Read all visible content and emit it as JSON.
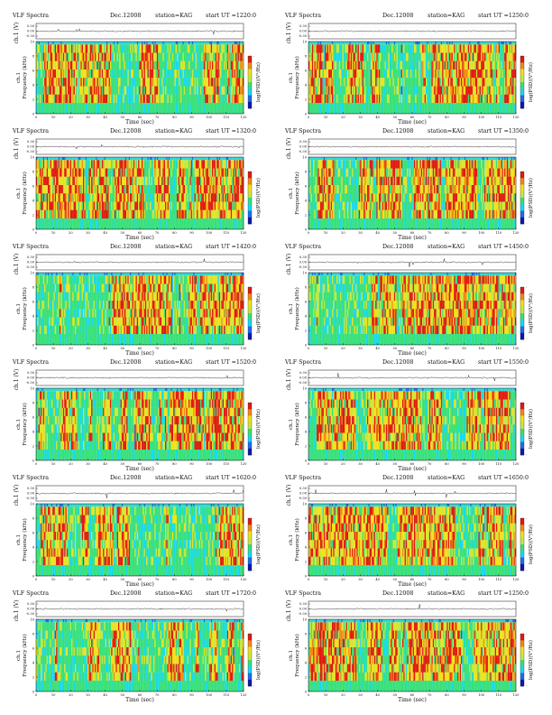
{
  "page": {
    "background": "#ffffff"
  },
  "panel_text": {
    "plot_title": "VLF Spectra",
    "date": "Dec.12008",
    "station": "station=KAG",
    "start_prefix": "start UT =",
    "waveform_ylabel": "ch.1 (V)",
    "freq_ylabel": "Frequency (kHz)",
    "channel_label": "ch.1",
    "xlabel": "Time (sec)",
    "colorbar_label": "log(PSD)(V²/Hz)"
  },
  "colors": {
    "colormap": [
      "#0a1aa8",
      "#1e6cf0",
      "#16d9f2",
      "#38e07a",
      "#c7e838",
      "#f2e11a",
      "#f28a12",
      "#e01a10"
    ],
    "background_band": "#2fd9d0",
    "waveform": "#222222"
  },
  "chart_data": [
    {
      "type": "heatmap",
      "title": "VLF Spectra",
      "date": "Dec.12008",
      "station": "station=KAG",
      "start_ut": "1220:0",
      "xlabel": "Time (sec)",
      "ylabel": "Frequency (kHz)",
      "waveform_ylabel": "ch.1 (V)",
      "x_ticks": [
        0,
        10,
        20,
        30,
        40,
        50,
        60,
        70,
        80,
        90,
        100,
        110,
        120
      ],
      "xlim": [
        0,
        120
      ],
      "y_ticks": [
        0,
        2,
        4,
        6,
        8,
        10
      ],
      "ylim": [
        0,
        10
      ],
      "waveform_ticks": [
        "0.30",
        "0.00",
        "-0.30"
      ],
      "colorbar_ticks": [
        "-",
        "",
        "-"
      ],
      "colorbar_label": "log(PSD)(V²/Hz)"
    },
    {
      "type": "heatmap",
      "title": "VLF Spectra",
      "date": "Dec.12008",
      "station": "station=KAG",
      "start_ut": "1250:0",
      "xlabel": "Time (sec)",
      "ylabel": "Frequency (kHz)",
      "waveform_ylabel": "ch.1 (V)",
      "x_ticks": [
        0,
        10,
        20,
        30,
        40,
        50,
        60,
        70,
        80,
        90,
        100,
        110,
        120
      ],
      "xlim": [
        0,
        120
      ],
      "y_ticks": [
        0,
        2,
        4,
        6,
        8,
        10
      ],
      "ylim": [
        0,
        10
      ],
      "waveform_ticks": [
        "0.30",
        "0.00",
        "-0.30"
      ],
      "colorbar_ticks": [
        "-",
        "",
        "-"
      ],
      "colorbar_label": "log(PSD)(V²/Hz)"
    },
    {
      "type": "heatmap",
      "title": "VLF Spectra",
      "date": "Dec.12008",
      "station": "station=KAG",
      "start_ut": "1320:0",
      "xlabel": "Time (sec)",
      "ylabel": "Frequency (kHz)",
      "waveform_ylabel": "ch.1 (V)",
      "x_ticks": [
        0,
        10,
        20,
        30,
        40,
        50,
        60,
        70,
        80,
        90,
        100,
        110,
        120
      ],
      "xlim": [
        0,
        120
      ],
      "y_ticks": [
        0,
        2,
        4,
        6,
        8,
        10
      ],
      "ylim": [
        0,
        10
      ],
      "waveform_ticks": [
        "0.30",
        "0.00",
        "-0.30"
      ],
      "colorbar_ticks": [
        "-",
        "",
        "-"
      ],
      "colorbar_label": "log(PSD)(V²/Hz)"
    },
    {
      "type": "heatmap",
      "title": "VLF Spectra",
      "date": "Dec.12008",
      "station": "station=KAG",
      "start_ut": "1350:0",
      "xlabel": "Time (sec)",
      "ylabel": "Frequency (kHz)",
      "waveform_ylabel": "ch.1 (V)",
      "x_ticks": [
        0,
        10,
        20,
        30,
        40,
        50,
        60,
        70,
        80,
        90,
        100,
        110,
        120
      ],
      "xlim": [
        0,
        120
      ],
      "y_ticks": [
        0,
        2,
        4,
        6,
        8,
        10
      ],
      "ylim": [
        0,
        10
      ],
      "waveform_ticks": [
        "0.30",
        "0.00",
        "-0.30"
      ],
      "colorbar_ticks": [
        "-",
        "",
        "-"
      ],
      "colorbar_label": "log(PSD)(V²/Hz)"
    },
    {
      "type": "heatmap",
      "title": "VLF Spectra",
      "date": "Dec.12008",
      "station": "station=KAG",
      "start_ut": "1420:0",
      "xlabel": "Time (sec)",
      "ylabel": "Frequency (kHz)",
      "waveform_ylabel": "ch.1 (V)",
      "x_ticks": [
        0,
        10,
        20,
        30,
        40,
        50,
        60,
        70,
        80,
        90,
        100,
        110,
        120
      ],
      "xlim": [
        0,
        120
      ],
      "y_ticks": [
        0,
        2,
        4,
        6,
        8,
        10
      ],
      "ylim": [
        0,
        10
      ],
      "waveform_ticks": [
        "0.30",
        "0.00",
        "-0.30"
      ],
      "colorbar_ticks": [
        "-",
        "",
        "-"
      ],
      "colorbar_label": "log(PSD)(V²/Hz)"
    },
    {
      "type": "heatmap",
      "title": "VLF Spectra",
      "date": "Dec.12008",
      "station": "station=KAG",
      "start_ut": "1450:0",
      "xlabel": "Time (sec)",
      "ylabel": "Frequency (kHz)",
      "waveform_ylabel": "ch.1 (V)",
      "x_ticks": [
        0,
        10,
        20,
        30,
        40,
        50,
        60,
        70,
        80,
        90,
        100,
        110,
        120
      ],
      "xlim": [
        0,
        120
      ],
      "y_ticks": [
        0,
        2,
        4,
        6,
        8,
        10
      ],
      "ylim": [
        0,
        10
      ],
      "waveform_ticks": [
        "0.30",
        "0.00",
        "-0.30"
      ],
      "colorbar_ticks": [
        "-",
        "",
        "-"
      ],
      "colorbar_label": "log(PSD)(V²/Hz)"
    },
    {
      "type": "heatmap",
      "title": "VLF Spectra",
      "date": "Dec.12008",
      "station": "station=KAG",
      "start_ut": "1520:0",
      "xlabel": "Time (sec)",
      "ylabel": "Frequency (kHz)",
      "waveform_ylabel": "ch.1 (V)",
      "x_ticks": [
        0,
        10,
        20,
        30,
        40,
        50,
        60,
        70,
        80,
        90,
        100,
        110,
        120
      ],
      "xlim": [
        0,
        120
      ],
      "y_ticks": [
        0,
        2,
        4,
        6,
        8,
        10
      ],
      "ylim": [
        0,
        10
      ],
      "waveform_ticks": [
        "0.30",
        "0.00",
        "-0.30"
      ],
      "colorbar_ticks": [
        "-",
        "",
        "-"
      ],
      "colorbar_label": "log(PSD)(V²/Hz)"
    },
    {
      "type": "heatmap",
      "title": "VLF Spectra",
      "date": "Dec.12008",
      "station": "station=KAG",
      "start_ut": "1550:0",
      "xlabel": "Time (sec)",
      "ylabel": "Frequency (kHz)",
      "waveform_ylabel": "ch.1 (V)",
      "x_ticks": [
        0,
        10,
        20,
        30,
        40,
        50,
        60,
        70,
        80,
        90,
        100,
        110,
        120
      ],
      "xlim": [
        0,
        120
      ],
      "y_ticks": [
        0,
        2,
        4,
        6,
        8,
        10
      ],
      "ylim": [
        0,
        10
      ],
      "waveform_ticks": [
        "0.30",
        "0.00",
        "-0.30"
      ],
      "colorbar_ticks": [
        "-",
        "",
        "-"
      ],
      "colorbar_label": "log(PSD)(V²/Hz)"
    },
    {
      "type": "heatmap",
      "title": "VLF Spectra",
      "date": "Dec.12008",
      "station": "station=KAG",
      "start_ut": "1620:0",
      "xlabel": "Time (sec)",
      "ylabel": "Frequency (kHz)",
      "waveform_ylabel": "ch.1 (V)",
      "x_ticks": [
        0,
        10,
        20,
        30,
        40,
        50,
        60,
        70,
        80,
        90,
        100,
        110,
        120
      ],
      "xlim": [
        0,
        120
      ],
      "y_ticks": [
        0,
        2,
        4,
        6,
        8,
        10
      ],
      "ylim": [
        0,
        10
      ],
      "waveform_ticks": [
        "0.30",
        "0.00",
        "-0.30"
      ],
      "colorbar_ticks": [
        "-",
        "",
        "-"
      ],
      "colorbar_label": "log(PSD)(V²/Hz)"
    },
    {
      "type": "heatmap",
      "title": "VLF Spectra",
      "date": "Dec.12008",
      "station": "station=KAG",
      "start_ut": "1650:0",
      "xlabel": "Time (sec)",
      "ylabel": "Frequency (kHz)",
      "waveform_ylabel": "ch.1 (V)",
      "x_ticks": [
        0,
        10,
        20,
        30,
        40,
        50,
        60,
        70,
        80,
        90,
        100,
        110,
        120
      ],
      "xlim": [
        0,
        120
      ],
      "y_ticks": [
        0,
        2,
        4,
        6,
        8,
        10
      ],
      "ylim": [
        0,
        10
      ],
      "waveform_ticks": [
        "0.30",
        "0.00",
        "-0.30"
      ],
      "colorbar_ticks": [
        "-",
        "",
        "-"
      ],
      "colorbar_label": "log(PSD)(V²/Hz)"
    },
    {
      "type": "heatmap",
      "title": "VLF Spectra",
      "date": "Dec.12008",
      "station": "station=KAG",
      "start_ut": "1720:0",
      "xlabel": "Time (sec)",
      "ylabel": "Frequency (kHz)",
      "waveform_ylabel": "ch.1 (V)",
      "x_ticks": [
        0,
        10,
        20,
        30,
        40,
        50,
        60,
        70,
        80,
        90,
        100,
        110,
        120
      ],
      "xlim": [
        0,
        120
      ],
      "y_ticks": [
        0,
        2,
        4,
        6,
        8,
        10
      ],
      "ylim": [
        0,
        10
      ],
      "waveform_ticks": [
        "0.30",
        "0.00",
        "-0.30"
      ],
      "colorbar_ticks": [
        "-",
        "",
        "-"
      ],
      "colorbar_label": "log(PSD)(V²/Hz)"
    },
    {
      "type": "heatmap",
      "title": "VLF Spectra",
      "date": "Dec.12008",
      "station": "station=KAG",
      "start_ut": "1250:0",
      "xlabel": "Time (sec)",
      "ylabel": "Frequency (kHz)",
      "waveform_ylabel": "ch.1 (V)",
      "x_ticks": [
        0,
        10,
        20,
        30,
        40,
        50,
        60,
        70,
        80,
        90,
        100,
        110,
        120
      ],
      "xlim": [
        0,
        120
      ],
      "y_ticks": [
        0,
        2,
        4,
        6,
        8,
        10
      ],
      "ylim": [
        0,
        10
      ],
      "waveform_ticks": [
        "0.30",
        "0.00",
        "-0.30"
      ],
      "colorbar_ticks": [
        "-",
        "",
        "-"
      ],
      "colorbar_label": "log(PSD)(V²/Hz)"
    }
  ]
}
